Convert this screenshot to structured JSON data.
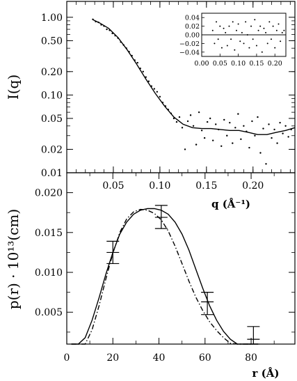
{
  "chart_data": [
    {
      "id": "top",
      "type": "scatter",
      "yscale": "log",
      "ylabel": "I(q)",
      "xlabel": "q (Å⁻¹)",
      "xlim": [
        0.0,
        0.245
      ],
      "ylim": [
        0.01,
        1.6
      ],
      "xticks": [
        0.05,
        0.1,
        0.15,
        0.2
      ],
      "xtick_labels": [
        "0.05",
        "0.10",
        "0.15",
        "0.20"
      ],
      "yticks": [
        0.01,
        0.02,
        0.05,
        0.1,
        0.2,
        0.5,
        1.0
      ],
      "ytick_labels": [
        "0.01",
        "0.02",
        "0.05",
        "0.10",
        "0.20",
        "0.50",
        "1.00"
      ],
      "fit_curve": {
        "x": [
          0.028,
          0.035,
          0.045,
          0.055,
          0.065,
          0.075,
          0.085,
          0.095,
          0.105,
          0.115,
          0.125,
          0.135,
          0.145,
          0.155,
          0.165,
          0.175,
          0.185,
          0.195,
          0.205,
          0.215,
          0.225,
          0.235,
          0.245
        ],
        "y": [
          0.93,
          0.85,
          0.72,
          0.55,
          0.38,
          0.25,
          0.16,
          0.105,
          0.072,
          0.052,
          0.042,
          0.038,
          0.037,
          0.037,
          0.036,
          0.035,
          0.035,
          0.033,
          0.031,
          0.031,
          0.033,
          0.035,
          0.038
        ]
      },
      "data_points": {
        "x": [
          0.028,
          0.031,
          0.034,
          0.037,
          0.04,
          0.043,
          0.046,
          0.049,
          0.052,
          0.055,
          0.058,
          0.061,
          0.064,
          0.067,
          0.07,
          0.073,
          0.076,
          0.079,
          0.082,
          0.085,
          0.088,
          0.091,
          0.094,
          0.097,
          0.1,
          0.103,
          0.106,
          0.109,
          0.112,
          0.115,
          0.118,
          0.121,
          0.124,
          0.127,
          0.13,
          0.133,
          0.136,
          0.139,
          0.142,
          0.145,
          0.148,
          0.151,
          0.154,
          0.157,
          0.16,
          0.163,
          0.166,
          0.169,
          0.172,
          0.175,
          0.178,
          0.181,
          0.184,
          0.187,
          0.19,
          0.193,
          0.196,
          0.199,
          0.202,
          0.205,
          0.208,
          0.211,
          0.214,
          0.217,
          0.22,
          0.223,
          0.226,
          0.229,
          0.232,
          0.235,
          0.238,
          0.241
        ],
        "y": [
          0.94,
          0.88,
          0.86,
          0.8,
          0.77,
          0.7,
          0.68,
          0.62,
          0.58,
          0.54,
          0.48,
          0.44,
          0.4,
          0.36,
          0.32,
          0.28,
          0.26,
          0.22,
          0.2,
          0.17,
          0.15,
          0.13,
          0.12,
          0.11,
          0.095,
          0.08,
          0.072,
          0.065,
          0.058,
          0.05,
          0.045,
          0.052,
          0.038,
          0.02,
          0.046,
          0.055,
          0.04,
          0.023,
          0.06,
          0.035,
          0.028,
          0.045,
          0.05,
          0.026,
          0.042,
          0.036,
          0.022,
          0.048,
          0.03,
          0.044,
          0.024,
          0.038,
          0.057,
          0.027,
          0.04,
          0.034,
          0.021,
          0.046,
          0.03,
          0.052,
          0.018,
          0.037,
          0.013,
          0.042,
          0.028,
          0.036,
          0.024,
          0.044,
          0.032,
          0.04,
          0.029,
          0.036
        ]
      },
      "inset": {
        "type": "scatter",
        "xlim": [
          0.0,
          0.23
        ],
        "ylim": [
          -0.05,
          0.05
        ],
        "xticks": [
          0.0,
          0.05,
          0.1,
          0.15,
          0.2
        ],
        "xtick_labels": [
          "0.00",
          "0.05",
          "0.10",
          "0.15",
          "0.20"
        ],
        "yticks": [
          -0.04,
          -0.02,
          0.0,
          0.02,
          0.04
        ],
        "ytick_labels": [
          "−0.04",
          "−0.02",
          "0.00",
          "0.02",
          "0.04"
        ],
        "residuals": {
          "x": [
            0.03,
            0.035,
            0.04,
            0.045,
            0.05,
            0.055,
            0.06,
            0.065,
            0.07,
            0.075,
            0.08,
            0.085,
            0.09,
            0.095,
            0.1,
            0.105,
            0.11,
            0.115,
            0.12,
            0.125,
            0.13,
            0.135,
            0.14,
            0.145,
            0.15,
            0.155,
            0.16,
            0.165,
            0.17,
            0.175,
            0.18,
            0.185,
            0.19,
            0.195,
            0.2,
            0.205,
            0.21,
            0.215,
            0.22,
            0.225
          ],
          "y": [
            0.01,
            -0.02,
            0.03,
            -0.01,
            0.02,
            -0.03,
            0.015,
            0.005,
            -0.025,
            0.02,
            -0.01,
            0.03,
            -0.035,
            0.01,
            0.025,
            -0.015,
            0.005,
            -0.02,
            0.03,
            0.0,
            -0.03,
            0.02,
            -0.01,
            0.035,
            -0.025,
            0.01,
            0.02,
            -0.04,
            0.015,
            0.005,
            -0.02,
            0.03,
            -0.01,
            0.02,
            -0.03,
            0.01,
            0.025,
            -0.015,
            0.005,
            0.01
          ]
        }
      }
    },
    {
      "id": "bottom",
      "type": "line",
      "xlabel": "r (Å)",
      "ylabel": "p(r) · 10¹³(cm)",
      "xlim": [
        0,
        99
      ],
      "ylim": [
        0.001,
        0.0225
      ],
      "xticks": [
        0,
        20,
        40,
        60,
        80
      ],
      "xtick_labels": [
        "0",
        "20",
        "40",
        "60",
        "80"
      ],
      "yticks": [
        0.005,
        0.01,
        0.015,
        0.02
      ],
      "ytick_labels": [
        "0.005",
        "0.010",
        "0.015",
        "0.020"
      ],
      "series": [
        {
          "style": "solid",
          "x": [
            2,
            5,
            8,
            11,
            14,
            17,
            20,
            23,
            26,
            29,
            32,
            35,
            38,
            41,
            44,
            47,
            50,
            53,
            56,
            59,
            62,
            65,
            68,
            71,
            74,
            77,
            80,
            83
          ],
          "y": [
            0.0,
            0.0005,
            0.0018,
            0.004,
            0.0068,
            0.0098,
            0.0125,
            0.0148,
            0.0163,
            0.0173,
            0.0178,
            0.018,
            0.018,
            0.0178,
            0.0173,
            0.0163,
            0.0148,
            0.0128,
            0.0104,
            0.008,
            0.0058,
            0.004,
            0.0026,
            0.0016,
            0.001,
            0.0008,
            0.0006,
            0.0001
          ]
        },
        {
          "style": "dash-dot",
          "x": [
            2,
            5,
            8,
            11,
            14,
            17,
            20,
            23,
            26,
            29,
            32,
            35,
            38,
            41,
            44,
            47,
            50,
            53,
            56,
            59,
            62,
            65,
            68,
            71,
            74,
            77,
            80
          ],
          "y": [
            0.0,
            0.0002,
            0.001,
            0.0028,
            0.0058,
            0.0092,
            0.0124,
            0.015,
            0.0167,
            0.0176,
            0.0179,
            0.0178,
            0.0174,
            0.0166,
            0.0152,
            0.0133,
            0.0111,
            0.0089,
            0.0069,
            0.0052,
            0.0038,
            0.0027,
            0.0018,
            0.0011,
            0.0006,
            0.0003,
            0.0001
          ]
        }
      ],
      "error_bars": [
        {
          "x": 20,
          "y": 0.0125,
          "lo": 0.0111,
          "hi": 0.0139
        },
        {
          "x": 41,
          "y": 0.0169,
          "lo": 0.0155,
          "hi": 0.0184
        },
        {
          "x": 61,
          "y": 0.0063,
          "lo": 0.0047,
          "hi": 0.0075
        },
        {
          "x": 81,
          "y": 0.0016,
          "lo": 0.001,
          "hi": 0.0032
        }
      ]
    }
  ]
}
